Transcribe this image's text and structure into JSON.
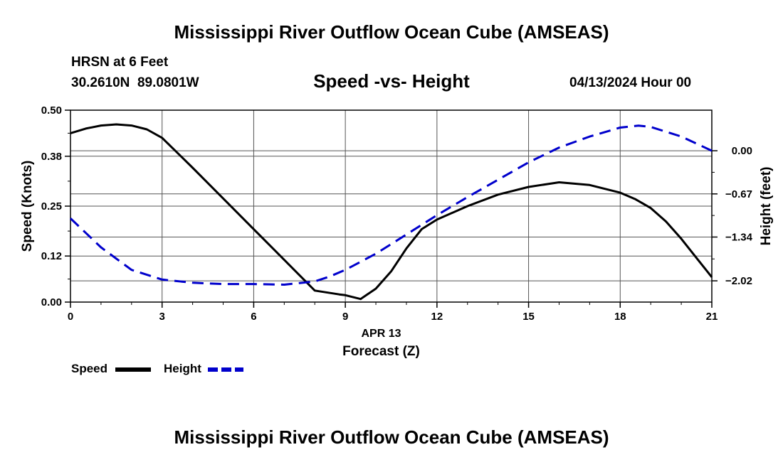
{
  "title_top": "Mississippi River Outflow Ocean Cube (AMSEAS)",
  "title_bottom": "Mississippi River Outflow Ocean Cube (AMSEAS)",
  "station": "HRSN at 6 Feet",
  "location": "30.2610N  89.0801W",
  "datetime": "04/13/2024 Hour 00",
  "chart_data": {
    "type": "line",
    "subtitle": "Speed -vs- Height",
    "xlabel": "Forecast (Z)",
    "xdate_label": "APR 13",
    "xlim": [
      0,
      21
    ],
    "xticks": [
      0,
      3,
      6,
      9,
      12,
      15,
      18,
      21
    ],
    "ylabel_left": "Speed (Knots)",
    "ylim_left": [
      0,
      0.5
    ],
    "yticks_left": [
      0.0,
      0.12,
      0.25,
      0.38,
      0.5
    ],
    "ytick_labels_left": [
      "0.00",
      "0.12",
      "0.25",
      "0.38",
      "0.50"
    ],
    "ylabel_right": "Height (feet)",
    "ylim_right": [
      -2.35,
      0.63
    ],
    "yticks_right": [
      0.0,
      -0.67,
      -1.34,
      -2.02
    ],
    "ytick_labels_right": [
      "0.00",
      "−0.67",
      "−1.34",
      "−2.02"
    ],
    "grid": true,
    "series": [
      {
        "name": "Speed",
        "color": "#000000",
        "style": "solid",
        "axis": "left",
        "x": [
          0,
          0.5,
          1,
          1.5,
          2,
          2.5,
          3,
          4,
          5,
          6,
          7,
          8,
          8.8,
          9,
          9.5,
          10,
          10.5,
          11,
          11.5,
          12,
          13,
          14,
          15,
          16,
          17,
          18,
          18.5,
          19,
          19.5,
          20,
          20.5,
          21
        ],
        "values": [
          0.44,
          0.452,
          0.46,
          0.463,
          0.46,
          0.45,
          0.428,
          0.35,
          0.27,
          0.19,
          0.11,
          0.03,
          0.02,
          0.018,
          0.008,
          0.035,
          0.08,
          0.14,
          0.19,
          0.215,
          0.25,
          0.28,
          0.3,
          0.312,
          0.305,
          0.285,
          0.268,
          0.245,
          0.21,
          0.165,
          0.115,
          0.065
        ]
      },
      {
        "name": "Height",
        "color": "#0000cc",
        "style": "dashed",
        "axis": "right",
        "x": [
          0,
          1,
          2,
          3,
          4,
          5,
          6,
          7,
          8,
          8.5,
          9,
          10,
          11,
          12,
          13,
          14,
          15,
          16,
          17,
          18,
          18.6,
          19,
          20,
          21
        ],
        "values": [
          -1.05,
          -1.5,
          -1.85,
          -2.0,
          -2.05,
          -2.07,
          -2.07,
          -2.08,
          -2.03,
          -1.95,
          -1.85,
          -1.6,
          -1.3,
          -1.0,
          -0.72,
          -0.45,
          -0.18,
          0.05,
          0.22,
          0.36,
          0.39,
          0.37,
          0.22,
          0.0
        ]
      }
    ],
    "legend": [
      {
        "label": "Speed",
        "color": "#000000",
        "style": "solid"
      },
      {
        "label": "Height",
        "color": "#0000cc",
        "style": "dashed"
      }
    ],
    "legend_position": "bottom-left"
  }
}
